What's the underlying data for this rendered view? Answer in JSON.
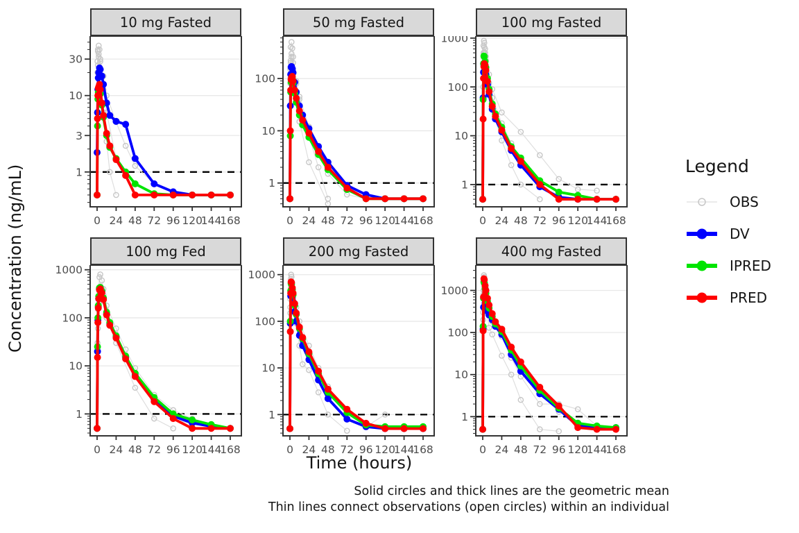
{
  "figure": {
    "y_axis_label": "Concentration (ng/mL)",
    "x_axis_label": "Time (hours)",
    "caption_line1": "Solid circles and thick lines are the geometric mean",
    "caption_line2": "Thin lines connect observations (open circles) within an individual"
  },
  "legend": {
    "title": "Legend",
    "items": [
      {
        "label": "OBS",
        "marker": "open-circle-thin-line",
        "color": "#C7C7C7"
      },
      {
        "label": "DV",
        "marker": "filled-circle-thick-line",
        "color": "#0000FF"
      },
      {
        "label": "IPRED",
        "marker": "filled-circle-thick-line",
        "color": "#00E400"
      },
      {
        "label": "PRED",
        "marker": "filled-circle-thick-line",
        "color": "#FF0000"
      }
    ]
  },
  "chart_data": {
    "type": "line",
    "scale": {
      "x": "linear",
      "y": "log10"
    },
    "x_unit": "hours",
    "xticks": [
      0,
      24,
      48,
      72,
      96,
      120,
      144,
      168
    ],
    "xlim": [
      0,
      168
    ],
    "lloq_reference_line": 1,
    "grid": "horizontal-major-only",
    "legend_position": "right",
    "series_colors": {
      "DV": "#0000FF",
      "IPRED": "#00E400",
      "PRED": "#FF0000",
      "OBS": "#C7C7C7"
    },
    "style": {
      "strip_bg": "#D9D9D9",
      "panel_border": "#333333",
      "gridline_color": "#E8E8E8",
      "tick_label_color": "#4D4D4D",
      "obs_line_color": "#DEDEDE",
      "obs_point_color": "#C7C7C7"
    },
    "time": [
      0,
      0.5,
      1,
      1.5,
      2,
      3,
      4,
      6,
      8,
      12,
      16,
      24,
      36,
      48,
      72,
      96,
      120,
      144,
      168
    ],
    "panels": [
      {
        "title": "10 mg Fasted",
        "ylim": [
          0.35,
          60
        ],
        "yticks": [
          30,
          10,
          3,
          1
        ],
        "series": {
          "DV": [
            1.8,
            6,
            12,
            17,
            20,
            23,
            22,
            18,
            14,
            8,
            5.5,
            4.6,
            4.2,
            1.5,
            0.7,
            0.55,
            0.5,
            0.5,
            0.5
          ],
          "IPRED": [
            0.5,
            4,
            9,
            11,
            11.5,
            12,
            10.5,
            7.5,
            5.2,
            3,
            2.1,
            1.5,
            1,
            0.7,
            0.52,
            0.5,
            0.5,
            0.5,
            0.5
          ],
          "PRED": [
            0.5,
            5,
            10,
            12.5,
            13,
            14,
            12,
            8,
            5.5,
            3.2,
            2.2,
            1.45,
            0.9,
            0.5,
            0.5,
            0.5,
            0.5,
            0.5,
            0.5
          ]
        },
        "obs": [
          {
            "t": [
              0.5,
              1,
              2,
              3,
              4,
              8,
              12,
              24,
              48
            ],
            "v": [
              20,
              38,
              45,
              40,
              28,
              12,
              6,
              1.5,
              0.5
            ]
          },
          {
            "t": [
              0.5,
              1,
              2,
              4,
              8,
              12,
              24,
              36,
              48,
              72,
              96
            ],
            "v": [
              10,
              25,
              35,
              30,
              18,
              10,
              4.5,
              2.2,
              1.2,
              0.7,
              0.55
            ]
          },
          {
            "t": [
              0.5,
              1,
              2,
              3,
              4,
              8,
              12,
              16,
              24
            ],
            "v": [
              28,
              40,
              32,
              22,
              15,
              6,
              2.5,
              1.0,
              0.5
            ]
          }
        ]
      },
      {
        "title": "50 mg Fasted",
        "ylim": [
          0.35,
          650
        ],
        "yticks": [
          100,
          10,
          1
        ],
        "series": {
          "DV": [
            0.5,
            30,
            120,
            165,
            170,
            155,
            130,
            85,
            55,
            30,
            20,
            11,
            5,
            2.5,
            0.9,
            0.6,
            0.5,
            0.5,
            0.5
          ],
          "IPRED": [
            0.5,
            8,
            55,
            85,
            95,
            100,
            82,
            52,
            35,
            20,
            13,
            7.5,
            3.5,
            1.8,
            0.75,
            0.5,
            0.5,
            0.5,
            0.5
          ],
          "PRED": [
            0.5,
            10,
            60,
            95,
            105,
            110,
            90,
            60,
            42,
            24,
            16,
            9,
            4,
            2,
            0.8,
            0.5,
            0.5,
            0.5,
            0.5
          ]
        },
        "obs": [
          {
            "t": [
              0.5,
              1,
              2,
              3,
              4,
              8,
              12,
              24,
              36,
              48
            ],
            "v": [
              150,
              400,
              500,
              380,
              260,
              90,
              40,
              8,
              2,
              0.5
            ]
          },
          {
            "t": [
              0.5,
              1,
              2,
              4,
              8,
              12,
              24,
              36,
              48,
              72,
              96
            ],
            "v": [
              80,
              200,
              300,
              200,
              80,
              45,
              12,
              4,
              1.5,
              0.6,
              0.5
            ]
          },
          {
            "t": [
              0.5,
              1,
              2,
              4,
              8,
              12,
              24,
              48
            ],
            "v": [
              100,
              220,
              260,
              150,
              40,
              15,
              2.5,
              0.4
            ]
          }
        ]
      },
      {
        "title": "100 mg Fasted",
        "ylim": [
          0.35,
          1100
        ],
        "yticks": [
          1000,
          100,
          10,
          1
        ],
        "series": {
          "DV": [
            0.5,
            60,
            200,
            270,
            280,
            230,
            180,
            110,
            70,
            35,
            22,
            12,
            5,
            2.5,
            0.9,
            0.55,
            0.5,
            0.5,
            0.5
          ],
          "IPRED": [
            0.5,
            55,
            300,
            430,
            420,
            330,
            250,
            150,
            90,
            45,
            28,
            15,
            6,
            3.5,
            1.2,
            0.7,
            0.6,
            0.5,
            0.5
          ],
          "PRED": [
            0.5,
            22,
            150,
            260,
            300,
            280,
            220,
            130,
            80,
            40,
            25,
            13,
            5.5,
            3,
            1,
            0.5,
            0.5,
            0.5,
            0.5
          ]
        },
        "obs": [
          {
            "t": [
              0.5,
              1,
              1.5,
              2,
              3,
              4,
              8,
              12,
              24,
              48,
              72,
              96,
              120,
              144
            ],
            "v": [
              200,
              700,
              880,
              800,
              600,
              420,
              180,
              90,
              30,
              12,
              4,
              1.3,
              0.8,
              0.75
            ]
          },
          {
            "t": [
              0.5,
              1,
              2,
              3,
              4,
              8,
              12,
              24,
              36,
              48,
              72,
              96
            ],
            "v": [
              150,
              500,
              650,
              500,
              350,
              120,
              60,
              18,
              7,
              3,
              0.9,
              0.5
            ]
          },
          {
            "t": [
              0.5,
              1,
              2,
              4,
              8,
              12,
              24,
              36,
              48,
              72
            ],
            "v": [
              100,
              400,
              500,
              250,
              80,
              35,
              8,
              2.5,
              1.0,
              0.5
            ]
          }
        ]
      },
      {
        "title": "100 mg Fed",
        "ylim": [
          0.35,
          1250
        ],
        "yticks": [
          1000,
          100,
          10,
          1
        ],
        "series": {
          "DV": [
            0.5,
            20,
            90,
            170,
            250,
            400,
            420,
            350,
            250,
            120,
            75,
            40,
            15,
            6.5,
            2,
            0.9,
            0.65,
            0.55,
            0.5
          ],
          "IPRED": [
            0.5,
            25,
            100,
            180,
            280,
            420,
            430,
            360,
            260,
            130,
            80,
            42,
            16,
            7,
            2.2,
            1,
            0.75,
            0.6,
            0.5
          ],
          "PRED": [
            0.5,
            15,
            80,
            160,
            250,
            380,
            400,
            330,
            240,
            115,
            70,
            38,
            14,
            6,
            1.8,
            0.8,
            0.5,
            0.5,
            0.5
          ]
        },
        "obs": [
          {
            "t": [
              0.5,
              1,
              2,
              3,
              4,
              6,
              8,
              12,
              24,
              36,
              48,
              72,
              96,
              120,
              144
            ],
            "v": [
              30,
              150,
              400,
              700,
              800,
              600,
              400,
              180,
              60,
              22,
              9,
              2.5,
              1.2,
              0.8,
              0.6
            ]
          },
          {
            "t": [
              1,
              2,
              3,
              4,
              6,
              8,
              12,
              24,
              36,
              48,
              72,
              96,
              120,
              144,
              168
            ],
            "v": [
              60,
              200,
              350,
              450,
              400,
              300,
              140,
              45,
              16,
              6,
              1.8,
              0.8,
              0.6,
              0.55,
              0.5
            ]
          },
          {
            "t": [
              0.5,
              1,
              2,
              4,
              6,
              8,
              12,
              24,
              48,
              72,
              96
            ],
            "v": [
              20,
              80,
              250,
              380,
              320,
              220,
              100,
              30,
              3.5,
              0.8,
              0.5
            ]
          }
        ]
      },
      {
        "title": "200 mg Fasted",
        "ylim": [
          0.35,
          1600
        ],
        "yticks": [
          1000,
          100,
          10,
          1
        ],
        "series": {
          "DV": [
            0.5,
            90,
            350,
            450,
            420,
            330,
            260,
            160,
            100,
            50,
            30,
            15,
            5.5,
            2.2,
            0.8,
            0.55,
            0.5,
            0.5,
            0.5
          ],
          "IPRED": [
            0.5,
            100,
            450,
            650,
            620,
            480,
            370,
            220,
            140,
            70,
            42,
            20,
            7.5,
            3,
            1.1,
            0.6,
            0.55,
            0.55,
            0.55
          ],
          "PRED": [
            0.5,
            60,
            400,
            700,
            680,
            520,
            400,
            240,
            150,
            75,
            45,
            22,
            8.5,
            3.5,
            1.3,
            0.65,
            0.5,
            0.5,
            0.5
          ]
        },
        "obs": [
          {
            "t": [
              0.5,
              1,
              1.5,
              2,
              3,
              4,
              8,
              12,
              24,
              36,
              48,
              72,
              96
            ],
            "v": [
              300,
              800,
              1000,
              900,
              650,
              480,
              200,
              100,
              30,
              10,
              4,
              1.1,
              0.6
            ]
          },
          {
            "t": [
              0.5,
              1,
              2,
              4,
              8,
              12,
              24,
              36,
              48,
              72,
              96,
              120
            ],
            "v": [
              150,
              500,
              700,
              400,
              150,
              70,
              20,
              6.5,
              2.5,
              0.8,
              0.55,
              1.0
            ]
          },
          {
            "t": [
              0.5,
              1,
              2,
              4,
              8,
              12,
              16,
              24,
              36,
              48,
              72
            ],
            "v": [
              200,
              600,
              550,
              300,
              90,
              30,
              12,
              9,
              3,
              1.0,
              0.45
            ]
          }
        ]
      },
      {
        "title": "400 mg Fasted",
        "ylim": [
          0.35,
          4000
        ],
        "yticks": [
          1000,
          100,
          10,
          1
        ],
        "series": {
          "DV": [
            0.5,
            120,
            400,
            700,
            650,
            500,
            420,
            320,
            260,
            200,
            140,
            90,
            30,
            12,
            3.5,
            1.5,
            0.6,
            0.55,
            0.55
          ],
          "IPRED": [
            0.5,
            140,
            650,
            1600,
            1500,
            1100,
            850,
            550,
            380,
            240,
            160,
            105,
            38,
            16,
            4.2,
            1.6,
            0.7,
            0.6,
            0.55
          ],
          "PRED": [
            0.5,
            110,
            700,
            1900,
            1800,
            1300,
            1000,
            650,
            450,
            280,
            180,
            120,
            45,
            20,
            5,
            1.8,
            0.55,
            0.5,
            0.5
          ]
        },
        "obs": [
          {
            "t": [
              0.5,
              1,
              1.5,
              2,
              3,
              4,
              8,
              12,
              24,
              36,
              48,
              72,
              96,
              120
            ],
            "v": [
              400,
              1500,
              2300,
              2100,
              1500,
              1100,
              450,
              280,
              110,
              35,
              14,
              3.5,
              1.3,
              0.7
            ]
          },
          {
            "t": [
              0.5,
              1,
              2,
              4,
              8,
              12,
              24,
              36,
              48,
              72,
              96,
              120,
              144
            ],
            "v": [
              200,
              800,
              1200,
              700,
              300,
              180,
              80,
              25,
              9,
              2.0,
              2.0,
              1.5,
              0.6
            ]
          },
          {
            "t": [
              0.5,
              1,
              2,
              4,
              6,
              8,
              12,
              24,
              36,
              48,
              72,
              96
            ],
            "v": [
              300,
              1000,
              900,
              500,
              280,
              130,
              90,
              28,
              10,
              2.5,
              0.5,
              0.45
            ]
          }
        ]
      }
    ]
  }
}
